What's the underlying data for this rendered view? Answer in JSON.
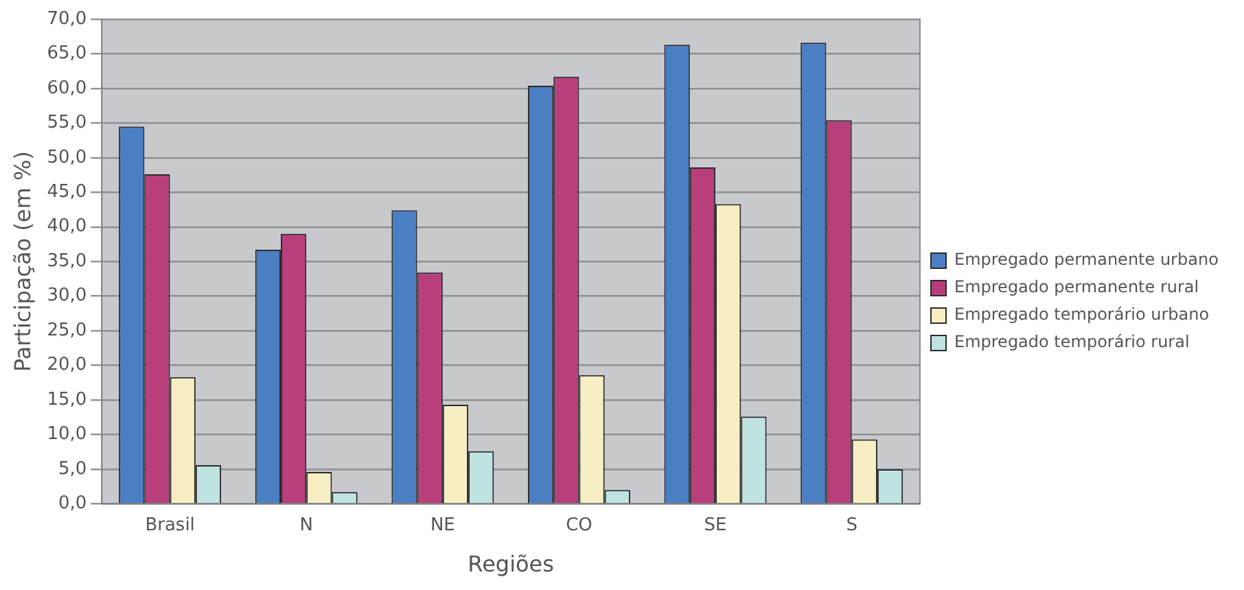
{
  "chart_data": {
    "type": "bar",
    "xlabel": "Regiões",
    "ylabel": "Participação (em %)",
    "categories": [
      "Brasil",
      "N",
      "NE",
      "CO",
      "SE",
      "S"
    ],
    "series": [
      {
        "name": "Empregado permanente urbano",
        "color": "#4a7fc4",
        "values": [
          54.5,
          36.7,
          42.4,
          60.4,
          66.3,
          66.6
        ]
      },
      {
        "name": "Empregado permanente rural",
        "color": "#b83f7c",
        "values": [
          47.6,
          39.0,
          33.4,
          61.7,
          48.6,
          55.4
        ]
      },
      {
        "name": "Empregado temporário urbano",
        "color": "#f7efc3",
        "values": [
          18.3,
          4.6,
          14.3,
          18.6,
          43.3,
          9.3
        ]
      },
      {
        "name": "Empregado temporário rural",
        "color": "#bfe3e0",
        "values": [
          5.6,
          1.7,
          7.6,
          2.0,
          12.6,
          5.0
        ]
      }
    ],
    "ylim": [
      0,
      70
    ],
    "yticks": [
      {
        "value": 0,
        "label": "0,0"
      },
      {
        "value": 5,
        "label": "5,0"
      },
      {
        "value": 10,
        "label": "10,0"
      },
      {
        "value": 15,
        "label": "15,0"
      },
      {
        "value": 20,
        "label": "20,0"
      },
      {
        "value": 25,
        "label": "25,0"
      },
      {
        "value": 30,
        "label": "30,0"
      },
      {
        "value": 35,
        "label": "35,0"
      },
      {
        "value": 40,
        "label": "40,0"
      },
      {
        "value": 45,
        "label": "45,0"
      },
      {
        "value": 50,
        "label": "50,0"
      },
      {
        "value": 55,
        "label": "55,0"
      },
      {
        "value": 60,
        "label": "60,0"
      },
      {
        "value": 65,
        "label": "65,0"
      },
      {
        "value": 70,
        "label": "70,0"
      }
    ],
    "grid": "y",
    "legend": "right"
  }
}
